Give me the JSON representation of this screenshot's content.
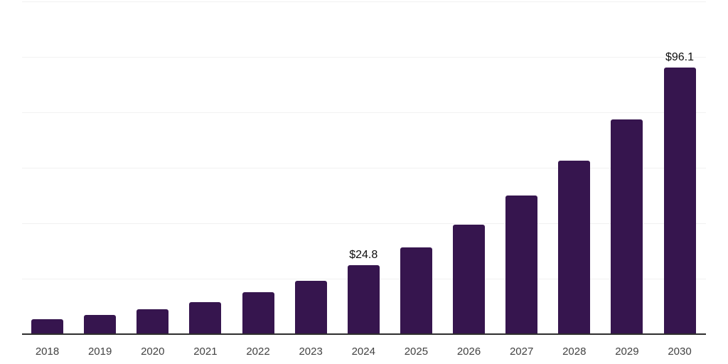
{
  "chart_data": {
    "type": "bar",
    "title": "",
    "xlabel": "",
    "ylabel": "",
    "categories": [
      "2018",
      "2019",
      "2020",
      "2021",
      "2022",
      "2023",
      "2024",
      "2025",
      "2026",
      "2027",
      "2028",
      "2029",
      "2030"
    ],
    "values": [
      5.3,
      6.8,
      9.1,
      11.6,
      15.1,
      19.2,
      24.8,
      31.3,
      39.6,
      49.9,
      62.5,
      77.5,
      96.1
    ],
    "data_labels": {
      "2024": "$24.8",
      "2030": "$96.1"
    },
    "ylim": [
      0,
      120
    ],
    "grid_step": 20,
    "grid": "on",
    "legend": "none",
    "colors": {
      "bar": "#36154E",
      "gridline": "#f1f1f1",
      "axis": "#2e2e2e",
      "x_label": "#424242",
      "value_label": "#0d0d0d",
      "background": "#ffffff"
    }
  }
}
